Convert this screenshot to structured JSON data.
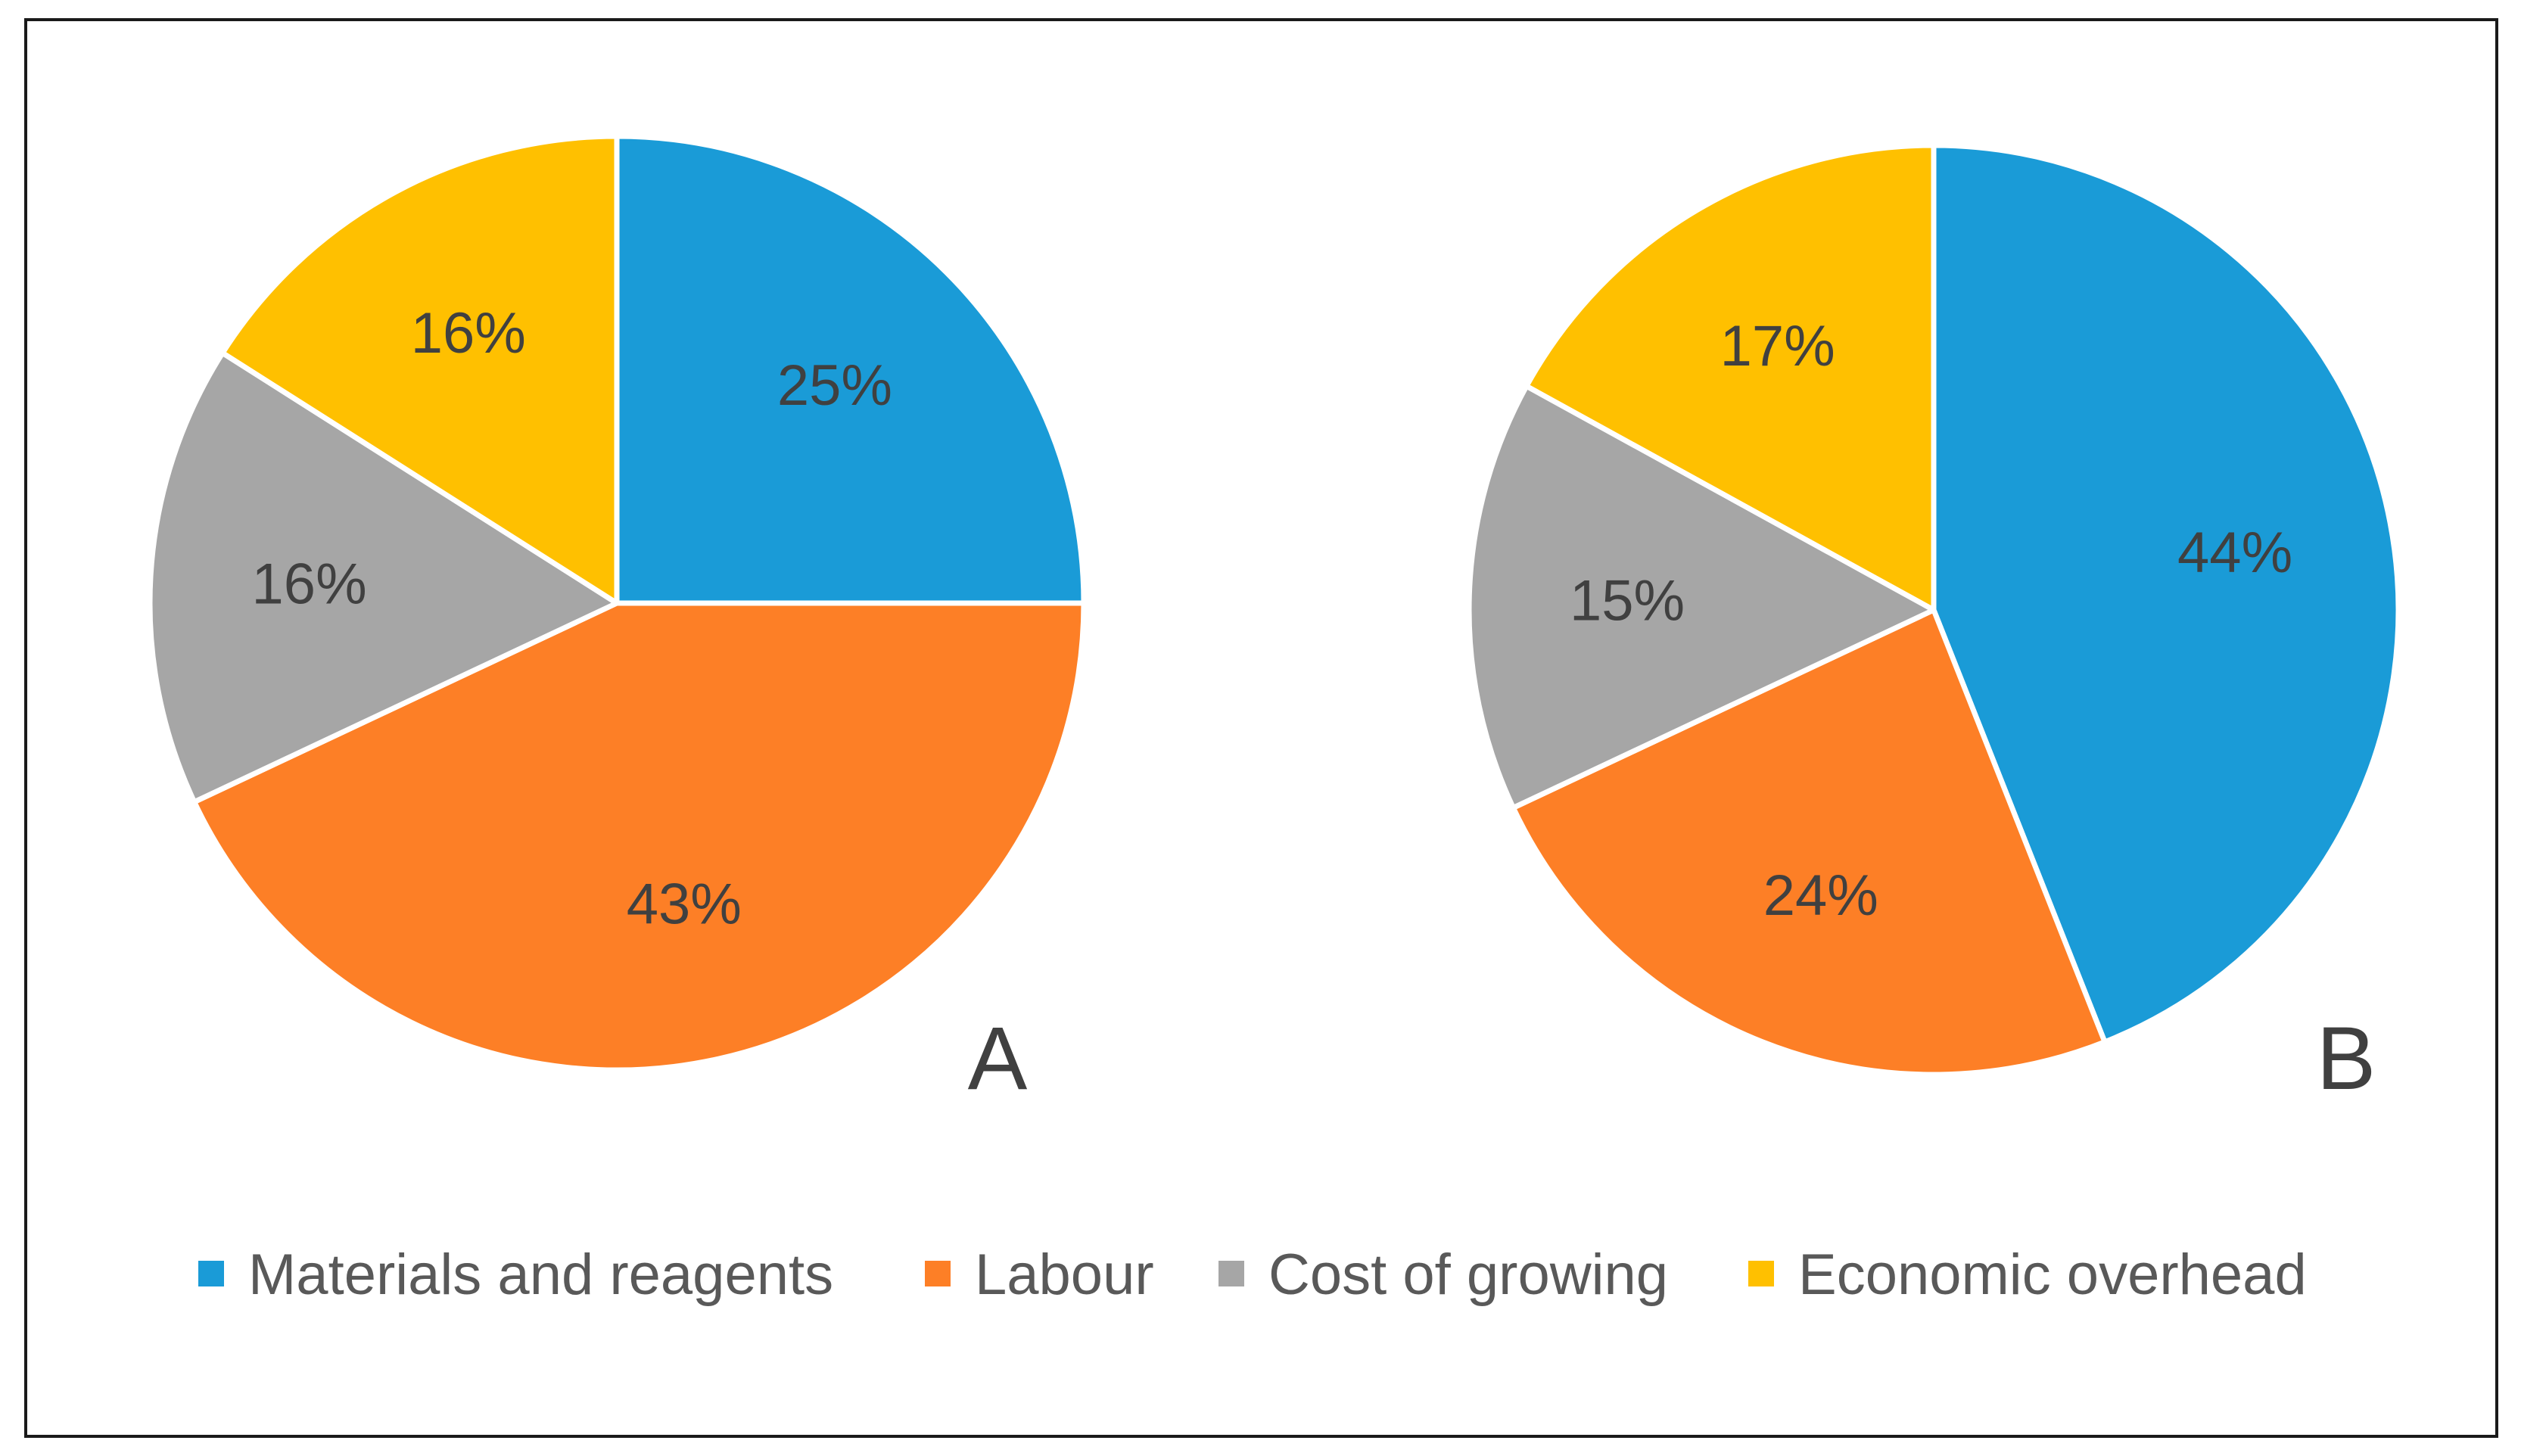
{
  "chart_data": [
    {
      "type": "pie",
      "panel_label": "A",
      "start_angle_deg": 0,
      "direction": "clockwise",
      "slices": [
        {
          "label": "Materials and reagents",
          "value": 25,
          "display": "25%",
          "color": "#1a9bd7"
        },
        {
          "label": "Labour",
          "value": 43,
          "display": "43%",
          "color": "#fd7f26"
        },
        {
          "label": "Cost of growing",
          "value": 16,
          "display": "16%",
          "color": "#a6a6a6"
        },
        {
          "label": "Economic overhead",
          "value": 16,
          "display": "16%",
          "color": "#ffc000"
        }
      ]
    },
    {
      "type": "pie",
      "panel_label": "B",
      "start_angle_deg": 0,
      "direction": "clockwise",
      "slices": [
        {
          "label": "Materials and reagents",
          "value": 44,
          "display": "44%",
          "color": "#1a9bd7"
        },
        {
          "label": "Labour",
          "value": 24,
          "display": "24%",
          "color": "#fd7f26"
        },
        {
          "label": "Cost of growing",
          "value": 15,
          "display": "15%",
          "color": "#a6a6a6"
        },
        {
          "label": "Economic overhead",
          "value": 17,
          "display": "17%",
          "color": "#ffc000"
        }
      ]
    }
  ],
  "legend": {
    "placement": "bottom",
    "items": [
      {
        "label": "Materials and reagents",
        "color": "#1a9bd7"
      },
      {
        "label": "Labour",
        "color": "#fd7f26"
      },
      {
        "label": "Cost of growing",
        "color": "#a6a6a6"
      },
      {
        "label": "Economic overhead",
        "color": "#ffc000"
      }
    ]
  }
}
